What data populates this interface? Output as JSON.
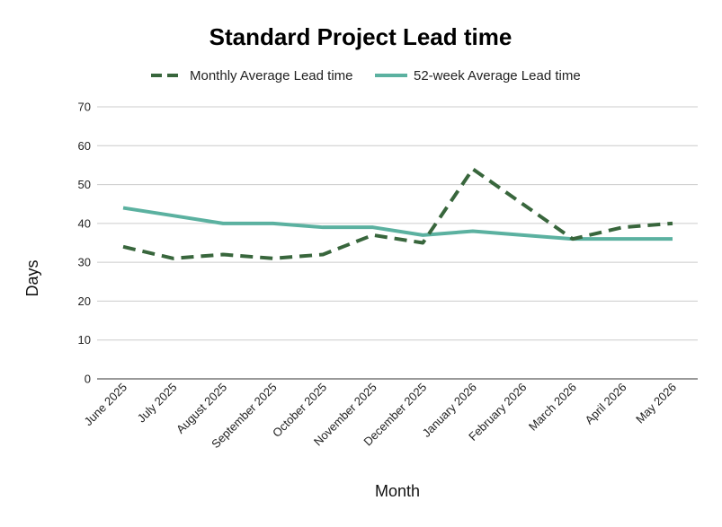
{
  "chart_data": {
    "type": "line",
    "title": "Standard Project Lead time",
    "xlabel": "Month",
    "ylabel": "Days",
    "ylim": [
      0,
      70
    ],
    "yticks": [
      0,
      10,
      20,
      30,
      40,
      50,
      60,
      70
    ],
    "grid": true,
    "legend_position": "top",
    "categories": [
      "June 2025",
      "July 2025",
      "August 2025",
      "September 2025",
      "October 2025",
      "November 2025",
      "December 2025",
      "January 2026",
      "February 2026",
      "March 2026",
      "April 2026",
      "May 2026"
    ],
    "series": [
      {
        "name": "Monthly Average Lead time",
        "color": "#38663c",
        "style": "dashed",
        "values": [
          34,
          31,
          32,
          31,
          32,
          37,
          35,
          54,
          45,
          36,
          39,
          40
        ]
      },
      {
        "name": "52-week Average Lead time",
        "color": "#5bb1a0",
        "style": "solid",
        "values": [
          44,
          42,
          40,
          40,
          39,
          39,
          37,
          38,
          37,
          36,
          36,
          36
        ]
      }
    ]
  }
}
